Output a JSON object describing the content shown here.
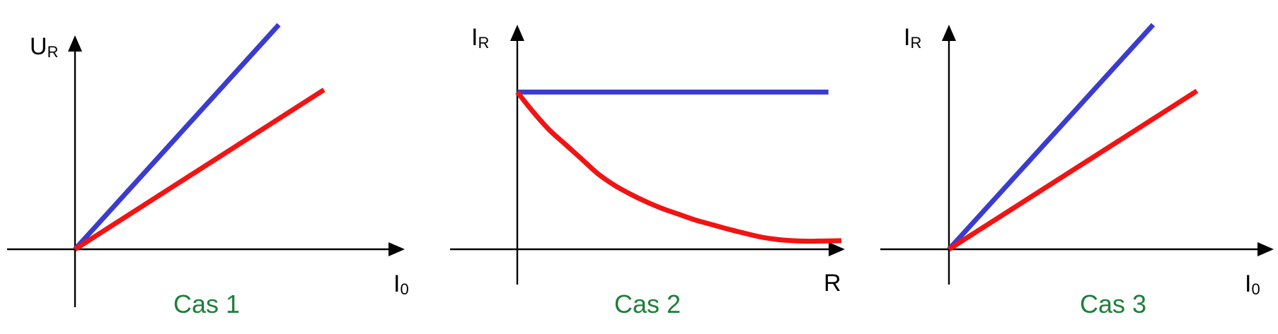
{
  "colors": {
    "blue": "#3a3ccf",
    "red": "#f21313",
    "axis": "#000000",
    "label_green": "#1e7f3a"
  },
  "chart_data": [
    {
      "type": "line",
      "title": "",
      "caption": "Cas 1",
      "xlabel": {
        "main": "I",
        "sub": "0"
      },
      "ylabel": {
        "main": "U",
        "sub": "R"
      },
      "xlim": [
        0,
        10
      ],
      "ylim": [
        0,
        10
      ],
      "grid": false,
      "series": [
        {
          "color": "blue",
          "x": [
            0,
            6.14
          ],
          "y": [
            0,
            10
          ]
        },
        {
          "color": "red",
          "x": [
            0,
            7.5
          ],
          "y": [
            0,
            7.1
          ]
        }
      ]
    },
    {
      "type": "line",
      "title": "",
      "caption": "Cas 2",
      "xlabel": {
        "main": "R",
        "sub": ""
      },
      "ylabel": {
        "main": "I",
        "sub": "R"
      },
      "xlim": [
        0,
        10
      ],
      "ylim": [
        0,
        10
      ],
      "grid": false,
      "series": [
        {
          "color": "blue",
          "x": [
            0,
            9.6
          ],
          "y": [
            7,
            7
          ]
        },
        {
          "color": "red",
          "x": [
            0,
            0.5,
            1,
            1.5,
            2,
            2.5,
            3,
            3.5,
            4,
            4.5,
            5,
            5.5,
            6,
            6.5,
            7,
            7.5,
            8,
            8.5,
            9,
            9.5,
            10
          ],
          "y": [
            7,
            6.1,
            5.3,
            4.65,
            4.0,
            3.35,
            2.85,
            2.45,
            2.1,
            1.8,
            1.55,
            1.3,
            1.1,
            0.9,
            0.72,
            0.55,
            0.44,
            0.38,
            0.36,
            0.37,
            0.38
          ]
        }
      ]
    },
    {
      "type": "line",
      "title": "",
      "caption": "Cas 3",
      "xlabel": {
        "main": "I",
        "sub": "0"
      },
      "ylabel": {
        "main": "I",
        "sub": "R"
      },
      "xlim": [
        0,
        10
      ],
      "ylim": [
        0,
        10
      ],
      "grid": false,
      "series": [
        {
          "color": "blue",
          "x": [
            0,
            6.3
          ],
          "y": [
            0,
            10
          ]
        },
        {
          "color": "red",
          "x": [
            0,
            7.65
          ],
          "y": [
            0,
            7.05
          ]
        }
      ]
    }
  ]
}
